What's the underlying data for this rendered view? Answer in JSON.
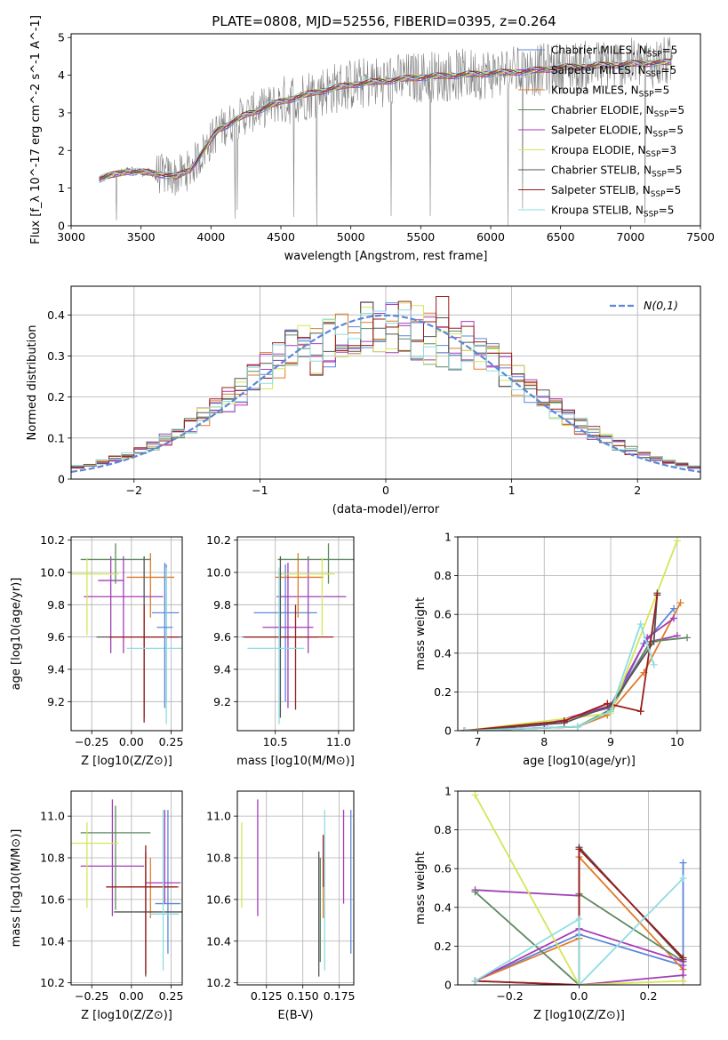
{
  "figure": {
    "title": "PLATE=0808, MJD=52556, FIBERID=0395, z=0.264"
  },
  "series": [
    {
      "name": "Chabrier MILES",
      "nssp": "5",
      "color": "#5b87d8"
    },
    {
      "name": "Salpeter MILES",
      "nssp": "5",
      "color": "#a03fb6"
    },
    {
      "name": "Kroupa MILES",
      "nssp": "5",
      "color": "#e07b2a"
    },
    {
      "name": "Chabrier ELODIE",
      "nssp": "5",
      "color": "#5e8a61"
    },
    {
      "name": "Salpeter ELODIE",
      "nssp": "5",
      "color": "#a83ab8"
    },
    {
      "name": "Kroupa ELODIE",
      "nssp": "3",
      "color": "#d4e657"
    },
    {
      "name": "Chabrier STELIB",
      "nssp": "5",
      "color": "#555555"
    },
    {
      "name": "Salpeter STELIB",
      "nssp": "5",
      "color": "#9b1c1c"
    },
    {
      "name": "Kroupa STELIB",
      "nssp": "5",
      "color": "#8ddde0"
    }
  ],
  "chart_data": [
    {
      "id": "spectrum",
      "type": "line",
      "xlabel": "wavelength [Angstrom, rest frame]",
      "ylabel": "Flux [f_λ 10^-17 erg cm^-2 s^-1 A^-1]",
      "xlim": [
        3000,
        7500
      ],
      "ylim": [
        0,
        5.1
      ],
      "xticks": [
        3000,
        3500,
        4000,
        4500,
        5000,
        5500,
        6000,
        6500,
        7000,
        7500
      ],
      "yticks": [
        0,
        1,
        2,
        3,
        4,
        5
      ],
      "grid": false,
      "legend": "top-right",
      "data_color": "#808080",
      "x_range_data": [
        3200,
        7300
      ],
      "continuum": {
        "x": [
          3200,
          3400,
          3600,
          3750,
          3850,
          3950,
          4050,
          4250,
          4500,
          4750,
          5000,
          5250,
          5500,
          5750,
          6000,
          6250,
          6500,
          6750,
          7000,
          7300
        ],
        "y": [
          1.25,
          1.45,
          1.4,
          1.3,
          1.5,
          2.0,
          2.55,
          2.95,
          3.3,
          3.55,
          3.75,
          3.85,
          3.95,
          4.0,
          4.05,
          4.1,
          4.2,
          4.25,
          4.3,
          4.35
        ]
      }
    },
    {
      "id": "residuals",
      "type": "histogram",
      "xlabel": "(data-model)/error",
      "ylabel": "Normed distribution",
      "xlim": [
        -2.5,
        2.5
      ],
      "ylim": [
        0,
        0.47
      ],
      "xticks": [
        -2,
        -1,
        0,
        1,
        2
      ],
      "xticklabels": [
        "−2",
        "−1",
        "0",
        "1",
        "2"
      ],
      "yticks": [
        0.0,
        0.1,
        0.2,
        0.3,
        0.4
      ],
      "grid": true,
      "legend": "top-right",
      "gaussian_label": "N(0,1)",
      "gaussian_color": "#5b87d8",
      "bins": [
        -2.5,
        -2.4,
        -2.3,
        -2.2,
        -2.1,
        -2.0,
        -1.9,
        -1.8,
        -1.7,
        -1.6,
        -1.5,
        -1.4,
        -1.3,
        -1.2,
        -1.1,
        -1.0,
        -0.9,
        -0.8,
        -0.7,
        -0.6,
        -0.5,
        -0.4,
        -0.3,
        -0.2,
        -0.1,
        0.0,
        0.1,
        0.2,
        0.3,
        0.4,
        0.5,
        0.6,
        0.7,
        0.8,
        0.9,
        1.0,
        1.1,
        1.2,
        1.3,
        1.4,
        1.5,
        1.6,
        1.7,
        1.8,
        1.9,
        2.0,
        2.1,
        2.2,
        2.3,
        2.4,
        2.5
      ]
    },
    {
      "id": "age-vs-Z",
      "type": "errorbar",
      "xlabel": "Z [log10(Z/Z⊙)]",
      "ylabel": "age [log10(age/yr)]",
      "xlim": [
        -0.38,
        0.32
      ],
      "ylim": [
        9.02,
        10.22
      ],
      "xticks": [
        -0.25,
        0.0,
        0.25
      ],
      "xticklabels": [
        "−0.25",
        "0.00",
        "0.25"
      ],
      "yticks": [
        9.2,
        9.4,
        9.6,
        9.8,
        10.0,
        10.2
      ],
      "yticklabels": [
        "9.2",
        "9.4",
        "9.6",
        "9.8",
        "10.0",
        "10.2"
      ],
      "grid": true,
      "points": [
        {
          "series": 0,
          "x": 0.22,
          "xerr": [
            0.09,
            0.08
          ],
          "y": 9.75,
          "yerr": [
            0.55,
            0.3
          ]
        },
        {
          "series": 1,
          "x": -0.13,
          "xerr": [
            0.08,
            0.08
          ],
          "y": 9.95,
          "yerr": [
            0.45,
            0.15
          ]
        },
        {
          "series": 2,
          "x": 0.12,
          "xerr": [
            0.15,
            0.15
          ],
          "y": 9.97,
          "yerr": [
            0.25,
            0.15
          ]
        },
        {
          "series": 3,
          "x": -0.1,
          "xerr": [
            0.22,
            0.22
          ],
          "y": 10.08,
          "yerr": [
            0.15,
            0.1
          ]
        },
        {
          "series": 4,
          "x": -0.05,
          "xerr": [
            0.25,
            0.25
          ],
          "y": 9.85,
          "yerr": [
            0.35,
            0.25
          ]
        },
        {
          "series": 5,
          "x": -0.28,
          "xerr": [
            0.2,
            0.2
          ],
          "y": 9.99,
          "yerr": [
            0.38,
            0.1
          ]
        },
        {
          "series": 6,
          "x": 0.08,
          "xerr": [
            0.3,
            0.3
          ],
          "y": 9.6,
          "yerr": [
            0.5,
            0.5
          ]
        },
        {
          "series": 7,
          "x": 0.08,
          "xerr": [
            0.22,
            0.22
          ],
          "y": 9.6,
          "yerr": [
            0.53,
            0.2
          ]
        },
        {
          "series": 8,
          "x": 0.22,
          "xerr": [
            0.25,
            0.1
          ],
          "y": 9.53,
          "yerr": [
            0.47,
            0.5
          ]
        },
        {
          "series": 0,
          "x": 0.21,
          "xerr": [
            0.05,
            0.05
          ],
          "y": 9.66,
          "yerr": [
            0.5,
            0.4
          ]
        }
      ]
    },
    {
      "id": "age-vs-mass",
      "type": "errorbar",
      "xlabel": "mass [log10(M/M⊙)]",
      "ylabel": "",
      "xlim": [
        10.2,
        11.12
      ],
      "ylim": [
        9.02,
        10.22
      ],
      "xticks": [
        10.5,
        11.0
      ],
      "xticklabels": [
        "10.5",
        "11.0"
      ],
      "yticks": [
        9.2,
        9.4,
        9.6,
        9.8,
        10.0,
        10.2
      ],
      "yticklabels": [
        "9.2",
        "9.4",
        "9.6",
        "9.8",
        "10.0",
        "10.2"
      ],
      "grid": true,
      "points": [
        {
          "series": 0,
          "x": 10.58,
          "xerr": [
            0.25,
            0.25
          ],
          "y": 9.75,
          "yerr": [
            0.55,
            0.3
          ]
        },
        {
          "series": 1,
          "x": 10.76,
          "xerr": [
            0.25,
            0.3
          ],
          "y": 9.85,
          "yerr": [
            0.35,
            0.25
          ]
        },
        {
          "series": 2,
          "x": 10.68,
          "xerr": [
            0.18,
            0.2
          ],
          "y": 9.97,
          "yerr": [
            0.25,
            0.15
          ]
        },
        {
          "series": 3,
          "x": 10.92,
          "xerr": [
            0.4,
            0.2
          ],
          "y": 10.08,
          "yerr": [
            0.15,
            0.1
          ]
        },
        {
          "series": 4,
          "x": 10.6,
          "xerr": [
            0.2,
            0.2
          ],
          "y": 9.66,
          "yerr": [
            0.5,
            0.4
          ]
        },
        {
          "series": 5,
          "x": 10.87,
          "xerr": [
            0.35,
            0.1
          ],
          "y": 9.99,
          "yerr": [
            0.38,
            0.1
          ]
        },
        {
          "series": 6,
          "x": 10.54,
          "xerr": [
            0.3,
            0.3
          ],
          "y": 9.6,
          "yerr": [
            0.5,
            0.5
          ]
        },
        {
          "series": 7,
          "x": 10.66,
          "xerr": [
            0.4,
            0.3
          ],
          "y": 9.6,
          "yerr": [
            0.45,
            0.2
          ]
        },
        {
          "series": 8,
          "x": 10.53,
          "xerr": [
            0.25,
            0.2
          ],
          "y": 9.53,
          "yerr": [
            0.47,
            0.5
          ]
        }
      ]
    },
    {
      "id": "weight-vs-age",
      "type": "line",
      "xlabel": "age [log10(age/yr)]",
      "ylabel": "mass weight",
      "xlim": [
        6.7,
        10.35
      ],
      "ylim": [
        0,
        1.0
      ],
      "xticks": [
        7,
        8,
        9,
        10
      ],
      "yticks": [
        0.0,
        0.2,
        0.4,
        0.6,
        0.8,
        1.0
      ],
      "grid": true,
      "lines": [
        {
          "series": 0,
          "x": [
            6.8,
            8.5,
            9.0,
            9.5,
            9.95
          ],
          "y": [
            0.0,
            0.02,
            0.1,
            0.45,
            0.63
          ]
        },
        {
          "series": 1,
          "x": [
            6.8,
            8.0,
            9.0,
            9.6,
            10.0
          ],
          "y": [
            0.0,
            0.03,
            0.12,
            0.46,
            0.49
          ]
        },
        {
          "series": 2,
          "x": [
            6.8,
            8.5,
            8.95,
            9.5,
            10.05
          ],
          "y": [
            0.0,
            0.02,
            0.08,
            0.3,
            0.66
          ]
        },
        {
          "series": 3,
          "x": [
            6.8,
            8.5,
            9.0,
            9.6,
            10.15
          ],
          "y": [
            0.0,
            0.02,
            0.11,
            0.46,
            0.48
          ]
        },
        {
          "series": 4,
          "x": [
            6.8,
            8.0,
            9.0,
            9.55,
            9.95
          ],
          "y": [
            0.0,
            0.03,
            0.13,
            0.48,
            0.58
          ]
        },
        {
          "series": 5,
          "x": [
            6.8,
            9.0,
            10.0
          ],
          "y": [
            0.0,
            0.09,
            0.98
          ]
        },
        {
          "series": 6,
          "x": [
            6.8,
            8.3,
            9.0,
            9.65,
            9.7
          ],
          "y": [
            0.0,
            0.04,
            0.13,
            0.46,
            0.71
          ]
        },
        {
          "series": 7,
          "x": [
            6.8,
            8.3,
            8.95,
            9.45,
            9.7
          ],
          "y": [
            0.0,
            0.05,
            0.14,
            0.1,
            0.7
          ]
        },
        {
          "series": 8,
          "x": [
            6.8,
            8.5,
            9.0,
            9.45,
            9.65
          ],
          "y": [
            0.0,
            0.02,
            0.1,
            0.55,
            0.34
          ]
        }
      ]
    },
    {
      "id": "mass-vs-Z",
      "type": "errorbar",
      "xlabel": "Z [log10(Z/Z⊙)]",
      "ylabel": "mass [log10(M/M⊙)]",
      "xlim": [
        -0.38,
        0.32
      ],
      "ylim": [
        10.19,
        11.12
      ],
      "xticks": [
        -0.25,
        0.0,
        0.25
      ],
      "xticklabels": [
        "−0.25",
        "0.00",
        "0.25"
      ],
      "yticks": [
        10.2,
        10.4,
        10.6,
        10.8,
        11.0
      ],
      "yticklabels": [
        "10.2",
        "10.4",
        "10.6",
        "10.8",
        "11.0"
      ],
      "grid": true,
      "points": [
        {
          "series": 0,
          "x": 0.23,
          "xerr": [
            0.08,
            0.08
          ],
          "y": 10.58,
          "yerr": [
            0.24,
            0.45
          ]
        },
        {
          "series": 1,
          "x": -0.12,
          "xerr": [
            0.2,
            0.2
          ],
          "y": 10.76,
          "yerr": [
            0.24,
            0.32
          ]
        },
        {
          "series": 2,
          "x": 0.12,
          "xerr": [
            0.15,
            0.18
          ],
          "y": 10.66,
          "yerr": [
            0.15,
            0.14
          ]
        },
        {
          "series": 3,
          "x": -0.1,
          "xerr": [
            0.22,
            0.22
          ],
          "y": 10.92,
          "yerr": [
            0.37,
            0.13
          ]
        },
        {
          "series": 4,
          "x": 0.21,
          "xerr": [
            0.12,
            0.1
          ],
          "y": 10.68,
          "yerr": [
            0.1,
            0.35
          ]
        },
        {
          "series": 5,
          "x": -0.28,
          "xerr": [
            0.1,
            0.2
          ],
          "y": 10.87,
          "yerr": [
            0.31,
            0.1
          ]
        },
        {
          "series": 6,
          "x": 0.09,
          "xerr": [
            0.2,
            0.3
          ],
          "y": 10.54,
          "yerr": [
            0.31,
            0.29
          ]
        },
        {
          "series": 7,
          "x": 0.09,
          "xerr": [
            0.25,
            0.2
          ],
          "y": 10.66,
          "yerr": [
            0.42,
            0.2
          ]
        },
        {
          "series": 8,
          "x": 0.2,
          "xerr": [
            0.08,
            0.1
          ],
          "y": 10.53,
          "yerr": [
            0.27,
            0.5
          ]
        }
      ]
    },
    {
      "id": "mass-vs-EBV",
      "type": "errorbar",
      "xlabel": "E(B-V)",
      "ylabel": "",
      "xlim": [
        0.105,
        0.185
      ],
      "ylim": [
        10.19,
        11.12
      ],
      "xticks": [
        0.125,
        0.15,
        0.175
      ],
      "xticklabels": [
        "0.125",
        "0.150",
        "0.175"
      ],
      "yticks": [
        10.2,
        10.4,
        10.6,
        10.8,
        11.0
      ],
      "yticklabels": [
        "10.2",
        "10.4",
        "10.6",
        "10.8",
        "11.0"
      ],
      "grid": true,
      "points": [
        {
          "series": 0,
          "x": 0.183,
          "xerr": [
            0,
            0
          ],
          "y": 10.58,
          "yerr": [
            0.24,
            0.45
          ]
        },
        {
          "series": 1,
          "x": 0.119,
          "xerr": [
            0,
            0
          ],
          "y": 10.76,
          "yerr": [
            0.24,
            0.32
          ]
        },
        {
          "series": 2,
          "x": 0.164,
          "xerr": [
            0,
            0
          ],
          "y": 10.66,
          "yerr": [
            0.15,
            0.14
          ]
        },
        {
          "series": 3,
          "x": 0.162,
          "xerr": [
            0,
            0
          ],
          "y": 10.6,
          "yerr": [
            0.3,
            0.2
          ]
        },
        {
          "series": 4,
          "x": 0.178,
          "xerr": [
            0,
            0
          ],
          "y": 10.68,
          "yerr": [
            0.1,
            0.35
          ]
        },
        {
          "series": 5,
          "x": 0.108,
          "xerr": [
            0,
            0
          ],
          "y": 10.87,
          "yerr": [
            0.31,
            0.1
          ]
        },
        {
          "series": 6,
          "x": 0.161,
          "xerr": [
            0,
            0
          ],
          "y": 10.54,
          "yerr": [
            0.31,
            0.29
          ]
        },
        {
          "series": 7,
          "x": 0.164,
          "xerr": [
            0,
            0
          ],
          "y": 10.76,
          "yerr": [
            0.1,
            0.15
          ]
        },
        {
          "series": 8,
          "x": 0.165,
          "xerr": [
            0,
            0
          ],
          "y": 10.53,
          "yerr": [
            0.27,
            0.5
          ]
        }
      ]
    },
    {
      "id": "weight-vs-Z",
      "type": "line",
      "xlabel": "Z [log10(Z/Z⊙)]",
      "ylabel": "mass weight",
      "xlim": [
        -0.35,
        0.35
      ],
      "ylim": [
        0,
        1.0
      ],
      "xticks": [
        -0.2,
        0.0,
        0.2
      ],
      "xticklabels": [
        "−0.2",
        "0.0",
        "0.2"
      ],
      "yticks": [
        0.0,
        0.2,
        0.4,
        0.6,
        0.8,
        1.0
      ],
      "grid": true,
      "lines": [
        {
          "series": 0,
          "x": [
            -0.3,
            0.0,
            0.3,
            0.3
          ],
          "y": [
            0.02,
            0.26,
            0.1,
            0.63
          ]
        },
        {
          "series": 1,
          "x": [
            -0.3,
            0.0,
            0.0,
            0.3
          ],
          "y": [
            0.49,
            0.46,
            0.0,
            0.05
          ]
        },
        {
          "series": 2,
          "x": [
            -0.3,
            0.0,
            0.0,
            0.3
          ],
          "y": [
            0.02,
            0.24,
            0.66,
            0.08
          ]
        },
        {
          "series": 3,
          "x": [
            -0.3,
            0.0,
            0.0,
            0.3
          ],
          "y": [
            0.48,
            0.0,
            0.47,
            0.12
          ]
        },
        {
          "series": 4,
          "x": [
            -0.3,
            0.0,
            0.3,
            0.3
          ],
          "y": [
            0.02,
            0.29,
            0.12,
            0.02
          ]
        },
        {
          "series": 5,
          "x": [
            -0.3,
            0.0,
            0.3
          ],
          "y": [
            0.98,
            0.0,
            0.02
          ]
        },
        {
          "series": 6,
          "x": [
            -0.3,
            0.0,
            0.0,
            0.3
          ],
          "y": [
            0.02,
            0.0,
            0.71,
            0.13
          ]
        },
        {
          "series": 7,
          "x": [
            -0.3,
            0.0,
            0.0,
            0.3
          ],
          "y": [
            0.02,
            0.0,
            0.7,
            0.14
          ]
        },
        {
          "series": 8,
          "x": [
            -0.3,
            0.0,
            0.0,
            0.3
          ],
          "y": [
            0.02,
            0.34,
            0.0,
            0.55
          ]
        }
      ]
    }
  ]
}
